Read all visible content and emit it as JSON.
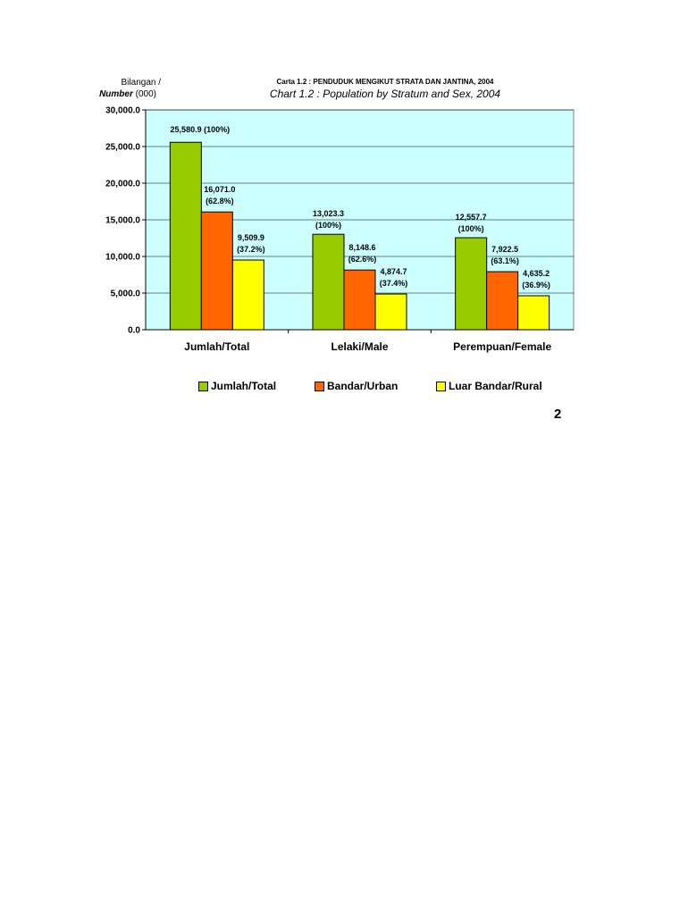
{
  "y_axis_label": {
    "line1": "Bilangan /",
    "line2_italic": "Number",
    "line2_rest": "(000)"
  },
  "title_malay": "Carta 1.2 : PENDUDUK MENGIKUT STRATA DAN JANTINA,  2004",
  "title_english": "Chart 1.2 : Population by Stratum and Sex, 2004",
  "page_number": "2",
  "colors": {
    "plot_bg": "#ccffff",
    "total": "#99cc00",
    "urban": "#ff6600",
    "rural": "#ffff00",
    "grid": "#000000"
  },
  "chart_data": {
    "type": "bar",
    "categories": [
      "Jumlah/Total",
      "Lelaki/Male",
      "Perempuan/Female"
    ],
    "series": [
      {
        "name": "Jumlah/Total",
        "values": [
          25580.9,
          13023.3,
          12557.7
        ]
      },
      {
        "name": "Bandar/Urban",
        "values": [
          16071.0,
          8148.6,
          7922.5
        ]
      },
      {
        "name": "Luar Bandar/Rural",
        "values": [
          9509.9,
          4874.7,
          4635.2
        ]
      }
    ],
    "data_labels": [
      [
        [
          "25,580.9 (100%)"
        ],
        [
          "16,071.0",
          "(62.8%)"
        ],
        [
          "9,509.9",
          "(37.2%)"
        ]
      ],
      [
        [
          "13,023.3",
          "(100%)"
        ],
        [
          "8,148.6",
          "(62.6%)"
        ],
        [
          "4,874.7",
          "(37.4%)"
        ]
      ],
      [
        [
          "12,557.7",
          "(100%)"
        ],
        [
          "7,922.5",
          "(63.1%)"
        ],
        [
          "4,635.2",
          "(36.9%)"
        ]
      ]
    ],
    "yticks": [
      0,
      5000,
      10000,
      15000,
      20000,
      25000,
      30000
    ],
    "ytick_labels": [
      "0.0",
      "5,000.0",
      "10,000.0",
      "15,000.0",
      "20,000.0",
      "25,000.0",
      "30,000.0"
    ],
    "ylim": [
      0,
      30000
    ],
    "grid": true,
    "legend": "bottom"
  }
}
